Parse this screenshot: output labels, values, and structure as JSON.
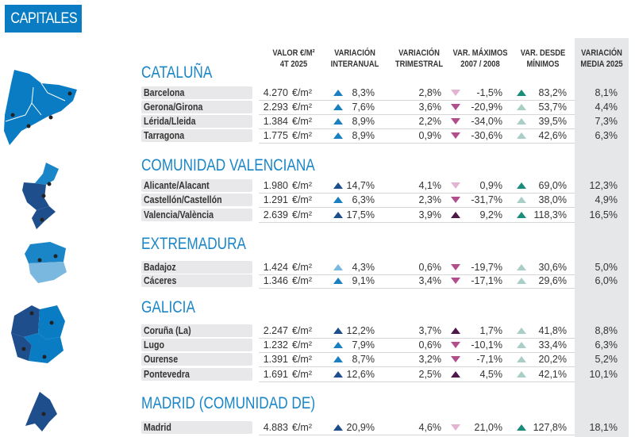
{
  "badge": "CAPITALES",
  "headers": {
    "valor": [
      "VALOR €/M²",
      "4T 2025"
    ],
    "interanual": [
      "VARIACIÓN",
      "INTERANUAL"
    ],
    "trimestral": [
      "VARIACIÓN",
      "TRIMESTRAL"
    ],
    "maximos": [
      "VAR. MÁXIMOS",
      "2007 / 2008"
    ],
    "minimos": [
      "VAR. DESDE",
      "MÍNIMOS"
    ],
    "media": [
      "VARIACIÓN",
      "MEDIA 2025"
    ]
  },
  "unit": "€/m²",
  "colors": {
    "accent": "#1a86c8",
    "up-dark": "#1f4e8c",
    "up-mid": "#1a7fc1",
    "up-light": "#7ab8e0",
    "down-light": "#e3b4d2",
    "down-mid": "#b24e8c",
    "up-purple": "#4e1848",
    "teal-dark": "#1a8c7a",
    "teal-light": "#a9cdc7"
  },
  "sections": [
    {
      "title": "CATALUÑA",
      "rows": [
        {
          "name": "Barcelona",
          "valor": "4.270",
          "inter": "8,3%",
          "inter_a": "up-mid",
          "trim": "2,8%",
          "max": "-1,5%",
          "max_a": "down-light",
          "min": "83,2%",
          "min_a": "teal-dark",
          "media": "8,1%"
        },
        {
          "name": "Gerona/Girona",
          "valor": "2.293",
          "inter": "7,6%",
          "inter_a": "up-mid",
          "trim": "3,6%",
          "max": "-20,9%",
          "max_a": "down-mid",
          "min": "53,7%",
          "min_a": "teal-light",
          "media": "4,4%"
        },
        {
          "name": "Lérida/Lleida",
          "valor": "1.384",
          "inter": "8,9%",
          "inter_a": "up-mid",
          "trim": "2,2%",
          "max": "-34,0%",
          "max_a": "down-mid",
          "min": "39,5%",
          "min_a": "teal-light",
          "media": "7,3%"
        },
        {
          "name": "Tarragona",
          "valor": "1.775",
          "inter": "8,9%",
          "inter_a": "up-mid",
          "trim": "0,9%",
          "max": "-30,6%",
          "max_a": "down-mid",
          "min": "42,6%",
          "min_a": "teal-light",
          "media": "6,3%"
        }
      ]
    },
    {
      "title": "COMUNIDAD VALENCIANA",
      "rows": [
        {
          "name": "Alicante/Alacant",
          "valor": "1.980",
          "inter": "14,7%",
          "inter_a": "up-dark",
          "trim": "4,1%",
          "max": "0,9%",
          "max_a": "down-light",
          "min": "69,0%",
          "min_a": "teal-dark",
          "media": "12,3%"
        },
        {
          "name": "Castellón/Castellón",
          "valor": "1.291",
          "inter": "6,3%",
          "inter_a": "up-mid",
          "trim": "2,3%",
          "max": "-31,7%",
          "max_a": "down-mid",
          "min": "38,0%",
          "min_a": "teal-light",
          "media": "4,9%"
        },
        {
          "name": "Valencia/València",
          "valor": "2.639",
          "inter": "17,5%",
          "inter_a": "up-dark",
          "trim": "3,9%",
          "max": "9,2%",
          "max_a": "up-purple",
          "min": "118,3%",
          "min_a": "teal-dark",
          "media": "16,5%"
        }
      ]
    },
    {
      "title": "EXTREMADURA",
      "rows": [
        {
          "name": "Badajoz",
          "valor": "1.424",
          "inter": "4,3%",
          "inter_a": "up-light",
          "trim": "0,6%",
          "max": "-19,7%",
          "max_a": "down-mid",
          "min": "30,6%",
          "min_a": "teal-light",
          "media": "5,0%"
        },
        {
          "name": "Cáceres",
          "valor": "1.346",
          "inter": "9,1%",
          "inter_a": "up-mid",
          "trim": "3,4%",
          "max": "-17,1%",
          "max_a": "down-mid",
          "min": "29,6%",
          "min_a": "teal-light",
          "media": "6,0%"
        }
      ]
    },
    {
      "title": "GALICIA",
      "rows": [
        {
          "name": "Coruña (La)",
          "valor": "2.247",
          "inter": "12,2%",
          "inter_a": "up-dark",
          "trim": "3,7%",
          "max": "1,7%",
          "max_a": "up-purple",
          "min": "41,8%",
          "min_a": "teal-light",
          "media": "8,8%"
        },
        {
          "name": "Lugo",
          "valor": "1.232",
          "inter": "7,9%",
          "inter_a": "up-mid",
          "trim": "0,6%",
          "max": "-10,1%",
          "max_a": "down-mid",
          "min": "33,4%",
          "min_a": "teal-light",
          "media": "6,3%"
        },
        {
          "name": "Ourense",
          "valor": "1.391",
          "inter": "8,7%",
          "inter_a": "up-mid",
          "trim": "3,2%",
          "max": "-7,1%",
          "max_a": "down-mid",
          "min": "20,2%",
          "min_a": "teal-light",
          "media": "5,2%"
        },
        {
          "name": "Pontevedra",
          "valor": "1.691",
          "inter": "12,6%",
          "inter_a": "up-dark",
          "trim": "2,5%",
          "max": "4,5%",
          "max_a": "up-purple",
          "min": "42,1%",
          "min_a": "teal-light",
          "media": "10,1%"
        }
      ]
    },
    {
      "title": "MADRID (COMUNIDAD DE)",
      "rows": [
        {
          "name": "Madrid",
          "valor": "4.883",
          "inter": "20,9%",
          "inter_a": "up-dark",
          "trim": "4,6%",
          "max": "21,0%",
          "max_a": "down-light",
          "min": "127,8%",
          "min_a": "teal-dark",
          "media": "18,1%"
        }
      ]
    }
  ]
}
